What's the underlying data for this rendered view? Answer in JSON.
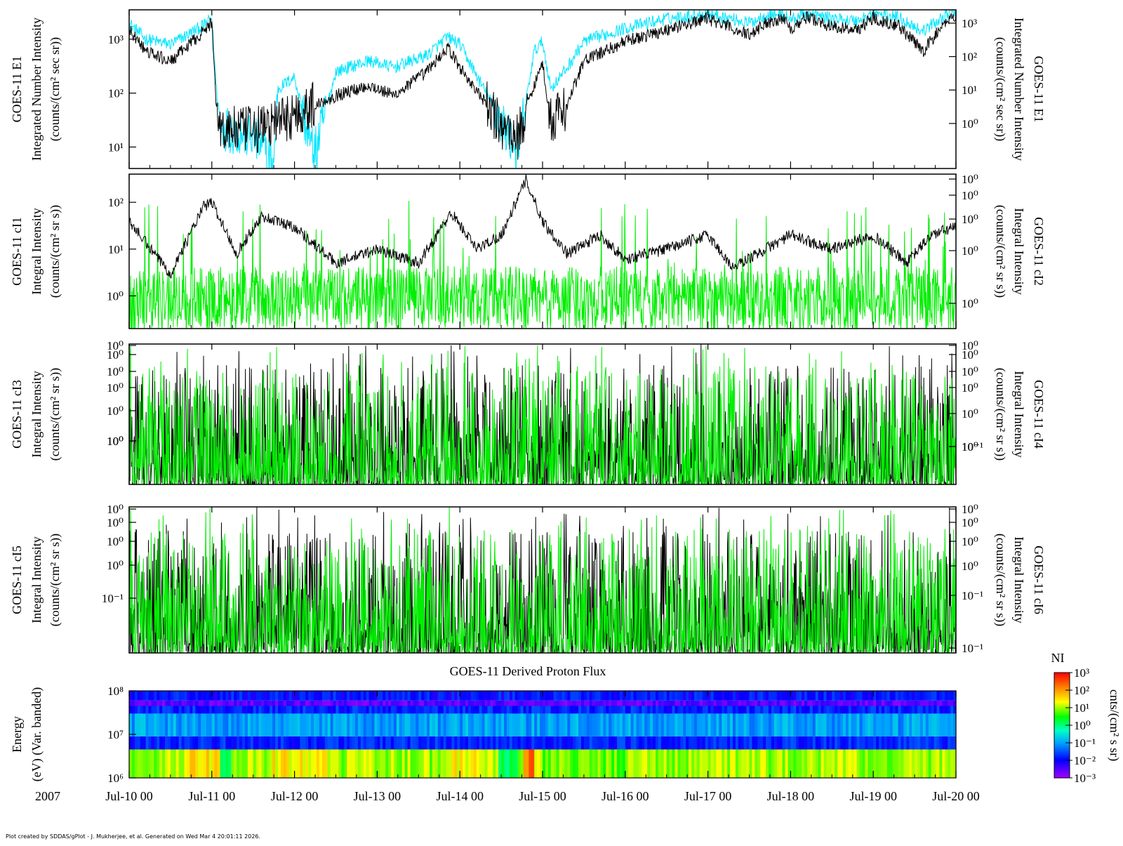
{
  "chart_data": [
    {
      "type": "line",
      "ylabel_left": [
        "GOES-11 E1",
        "Integrated Number Intensity",
        "(counts/(cm² sec sr))"
      ],
      "ylabel_right": [
        "GOES-11 E1",
        "Integrated Number Intensity",
        "(counts/(cm² sec sr))"
      ],
      "y_scale": "log",
      "ylim_left": [
        4,
        3500
      ],
      "ylim_right": [
        0.045,
        2500
      ],
      "left_ticks": [
        "10¹",
        "10²",
        "10³"
      ],
      "right_ticks": [
        "10⁰",
        "10¹",
        "10²",
        "10³"
      ],
      "series": [
        {
          "color": "#000000",
          "x": [
            0,
            0.2,
            0.5,
            0.9,
            1.0,
            1.05,
            1.1,
            1.5,
            2.0,
            2.5,
            2.9,
            3.2,
            3.6,
            3.85,
            4.0,
            4.5,
            4.7,
            4.9,
            5.0,
            5.1,
            5.3,
            5.5,
            6.0,
            6.5,
            7.0,
            7.5,
            7.7,
            7.9,
            8.0,
            8.2,
            8.5,
            8.8,
            9.0,
            9.3,
            9.6,
            9.9,
            10.0
          ],
          "y": [
            1500,
            600,
            380,
            1400,
            2000,
            80,
            22,
            20,
            40,
            90,
            140,
            90,
            250,
            700,
            300,
            25,
            15,
            150,
            350,
            30,
            60,
            400,
            900,
            1500,
            2400,
            1200,
            2000,
            2500,
            1600,
            2600,
            1700,
            1500,
            2500,
            1800,
            600,
            2300,
            2800
          ]
        },
        {
          "color": "#00e5ff",
          "x": [
            0,
            0.2,
            0.5,
            0.9,
            1.0,
            1.05,
            1.1,
            1.5,
            1.75,
            1.8,
            2.0,
            2.2,
            2.25,
            2.5,
            2.9,
            3.2,
            3.6,
            3.85,
            4.0,
            4.5,
            4.7,
            4.9,
            5.0,
            5.1,
            5.3,
            5.5,
            6.0,
            6.5,
            7.0,
            7.5,
            7.7,
            7.9,
            8.0,
            8.2,
            8.5,
            8.8,
            9.0,
            9.3,
            9.6,
            9.9,
            10.0
          ],
          "y": [
            2000,
            1000,
            800,
            1800,
            2500,
            150,
            25,
            15,
            5,
            120,
            200,
            10,
            8,
            250,
            400,
            300,
            500,
            1100,
            800,
            30,
            8,
            600,
            900,
            120,
            300,
            900,
            1600,
            2400,
            3000,
            2000,
            2800,
            3000,
            2300,
            3000,
            2400,
            2200,
            3000,
            2600,
            1400,
            3000,
            3000
          ]
        }
      ]
    },
    {
      "type": "line",
      "ylabel_left": [
        "GOES-11 cI1",
        "Integral Intensity",
        "(counts/(cm² sr s))"
      ],
      "ylabel_right": [
        "GOES-11 cI2",
        "Integral Intensity",
        "(counts/(cm² sr s))"
      ],
      "y_scale": "log",
      "ylim_left": [
        0.2,
        400
      ],
      "left_ticks": [
        "10⁰",
        "10¹",
        "10²"
      ],
      "right_ticks": [
        "10⁰",
        "10⁰",
        "10⁰",
        "10⁰",
        "10⁰"
      ],
      "series": [
        {
          "color": "#000000",
          "x": [
            0,
            0.3,
            0.5,
            0.9,
            1.0,
            1.3,
            1.6,
            2.0,
            2.5,
            3.0,
            3.5,
            3.9,
            4.2,
            4.5,
            4.8,
            5.0,
            5.3,
            5.7,
            6.0,
            6.5,
            7.0,
            7.3,
            7.6,
            8.0,
            8.5,
            9.0,
            9.4,
            9.7,
            10.0
          ],
          "y": [
            40,
            8,
            3,
            80,
            100,
            8,
            50,
            30,
            5,
            10,
            5,
            60,
            10,
            20,
            300,
            40,
            8,
            20,
            6,
            10,
            20,
            4,
            8,
            20,
            10,
            20,
            5,
            20,
            30
          ]
        },
        {
          "color": "#00ee00",
          "x": [
            0,
            10
          ],
          "y": [
            2,
            2
          ],
          "note": "noisy fluctuating series spanning roughly 0.3–100"
        }
      ]
    },
    {
      "type": "line",
      "ylabel_left": [
        "GOES-11 cI3",
        "Integral Intensity",
        "(counts/(cm² sr s))"
      ],
      "ylabel_right": [
        "GOES-11 cI4",
        "Integral Intensity",
        "(counts/(cm² sr s))"
      ],
      "y_scale": "log",
      "left_ticks": [
        "10⁰",
        "10⁰",
        "10⁰",
        "10⁰",
        "10⁰",
        "10⁰",
        "10⁰"
      ],
      "right_ticks": [
        "10⁰",
        "10⁰",
        "10⁰",
        "10⁰",
        "10⁰",
        "10⁰",
        "10⁻¹"
      ],
      "series": [
        {
          "color": "#000000",
          "x": [
            0,
            10
          ],
          "y": [
            1,
            1
          ],
          "note": "noisy spiky series"
        },
        {
          "color": "#00ee00",
          "x": [
            0,
            10
          ],
          "y": [
            1,
            1
          ],
          "note": "noisy spiky series"
        }
      ]
    },
    {
      "type": "line",
      "ylabel_left": [
        "GOES-11 cI5",
        "Integral Intensity",
        "(counts/(cm² sr s))"
      ],
      "ylabel_right": [
        "GOES-11 cI6",
        "Integral Intensity",
        "(counts/(cm² sr s))"
      ],
      "y_scale": "log",
      "left_ticks": [
        "10⁰",
        "10⁰",
        "10⁰",
        "10⁰",
        "10⁻¹"
      ],
      "right_ticks": [
        "10⁰",
        "10⁰",
        "10⁰",
        "10⁰",
        "10⁻¹",
        "10⁻¹"
      ],
      "series": [
        {
          "color": "#000000",
          "x": [
            0,
            10
          ],
          "y": [
            0.1,
            0.1
          ],
          "note": "noisy spiky series"
        },
        {
          "color": "#00ee00",
          "x": [
            0,
            10
          ],
          "y": [
            0.1,
            0.1
          ],
          "note": "noisy spiky series, peak near Jul-17 00"
        }
      ]
    },
    {
      "type": "heatmap",
      "title": "GOES-11 Derived Proton Flux",
      "ylabel_left": [
        "Energy",
        "(eV) (Var. banded)"
      ],
      "y_scale": "log",
      "left_ticks": [
        "10⁶",
        "10⁷",
        "10⁸"
      ],
      "bands": [
        {
          "range": [
            1000000,
            4500000
          ],
          "level": 1.0
        },
        {
          "range": [
            4500000,
            9000000
          ],
          "level": -1.8
        },
        {
          "range": [
            9000000,
            30000000
          ],
          "level": -1.0
        },
        {
          "range": [
            30000000,
            45000000
          ],
          "level": -1.8
        },
        {
          "range": [
            45000000,
            60000000
          ],
          "level": -2.6
        },
        {
          "range": [
            60000000,
            100000000
          ],
          "level": -1.9
        }
      ],
      "colorbar": {
        "title": "NI",
        "label": "cnts/(cm² s sr)",
        "ticks": [
          "10³",
          "10²",
          "10¹",
          "10⁰",
          "10⁻¹",
          "10⁻²",
          "10⁻³"
        ],
        "range_log10": [
          -3,
          3
        ]
      }
    }
  ],
  "x_axis": {
    "year_label": "2007",
    "ticks": [
      "Jul-10 00",
      "Jul-11 00",
      "Jul-12 00",
      "Jul-13 00",
      "Jul-14 00",
      "Jul-15 00",
      "Jul-16 00",
      "Jul-17 00",
      "Jul-18 00",
      "Jul-19 00",
      "Jul-20 00"
    ],
    "range_days": [
      0,
      10
    ]
  },
  "footer": "Plot created by SDDAS/gPlot - J. Mukherjee, et al.  Generated on Wed Mar 4 20:01:11 2026."
}
